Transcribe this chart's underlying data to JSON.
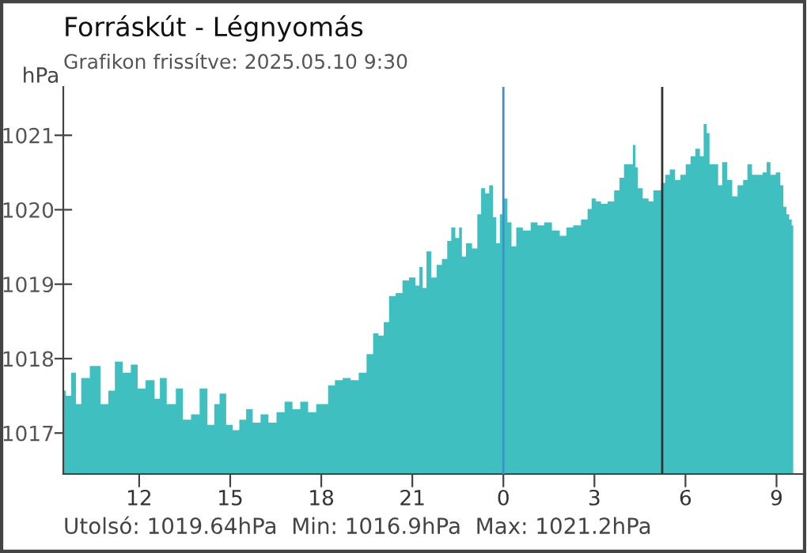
{
  "chart_data": {
    "type": "area",
    "title": "Forráskút - Légnyomás",
    "subtitle": "Grafikon frissítve: 2025.05.10 9:30",
    "ylabel": "hPa",
    "annotations": [
      "Utolsó: 1019.64hPa  Min: 1016.9hPa  Max: 1021.2hPa"
    ],
    "x": [
      "2025-05-09T09:30",
      "2025-05-09T09:40",
      "2025-05-09T09:51",
      "2025-05-09T09:59",
      "2025-05-09T10:12",
      "2025-05-09T10:33",
      "2025-05-09T10:54",
      "2025-05-09T11:04",
      "2025-05-09T11:20",
      "2025-05-09T11:35",
      "2025-05-09T11:52",
      "2025-05-09T12:02",
      "2025-05-09T12:23",
      "2025-05-09T12:38",
      "2025-05-09T12:44",
      "2025-05-09T13:05",
      "2025-05-09T13:20",
      "2025-05-09T13:33",
      "2025-05-09T13:52",
      "2025-05-09T14:07",
      "2025-05-09T14:23",
      "2025-05-09T14:34",
      "2025-05-09T14:44",
      "2025-05-09T15:00",
      "2025-05-09T15:10",
      "2025-05-09T15:26",
      "2025-05-09T15:37",
      "2025-05-09T15:52",
      "2025-05-09T16:08",
      "2025-05-09T16:23",
      "2025-05-09T16:40",
      "2025-05-09T16:55",
      "2025-05-09T17:11",
      "2025-05-09T17:26",
      "2025-05-09T17:42",
      "2025-05-09T17:58",
      "2025-05-09T18:08",
      "2025-05-09T18:19",
      "2025-05-09T18:35",
      "2025-05-09T18:50",
      "2025-05-09T19:06",
      "2025-05-09T19:22",
      "2025-05-09T19:37",
      "2025-05-09T19:48",
      "2025-05-09T19:58",
      "2025-05-09T20:09",
      "2025-05-09T20:19",
      "2025-05-09T20:35",
      "2025-05-09T20:46",
      "2025-05-09T21:01",
      "2025-05-09T21:11",
      "2025-05-09T21:17",
      "2025-05-09T21:24",
      "2025-05-09T21:32",
      "2025-05-09T21:43",
      "2025-05-09T21:53",
      "2025-05-09T22:04",
      "2025-05-09T22:14",
      "2025-05-09T22:20",
      "2025-05-09T22:30",
      "2025-05-09T22:35",
      "2025-05-09T22:41",
      "2025-05-09T22:51",
      "2025-05-09T23:05",
      "2025-05-09T23:12",
      "2025-05-09T23:20",
      "2025-05-09T23:28",
      "2025-05-09T23:36",
      "2025-05-09T23:43",
      "2025-05-09T23:49",
      "2025-05-09T23:57",
      "2025-05-10T00:04",
      "2025-05-10T00:12",
      "2025-05-10T00:20",
      "2025-05-10T00:31",
      "2025-05-10T00:46",
      "2025-05-10T01:02",
      "2025-05-10T01:13",
      "2025-05-10T01:28",
      "2025-05-10T01:44",
      "2025-05-10T01:59",
      "2025-05-10T02:10",
      "2025-05-10T02:26",
      "2025-05-10T02:41",
      "2025-05-10T02:52",
      "2025-05-10T02:57",
      "2025-05-10T03:08",
      "2025-05-10T03:18",
      "2025-05-10T03:34",
      "2025-05-10T03:44",
      "2025-05-10T03:55",
      "2025-05-10T04:02",
      "2025-05-10T04:13",
      "2025-05-10T04:19",
      "2025-05-10T04:23",
      "2025-05-10T04:29",
      "2025-05-10T04:42",
      "2025-05-10T04:52",
      "2025-05-10T05:01",
      "2025-05-10T05:08",
      "2025-05-10T05:16",
      "2025-05-10T05:24",
      "2025-05-10T05:34",
      "2025-05-10T05:45",
      "2025-05-10T05:55",
      "2025-05-10T06:06",
      "2025-05-10T06:14",
      "2025-05-10T06:25",
      "2025-05-10T06:32",
      "2025-05-10T06:40",
      "2025-05-10T06:44",
      "2025-05-10T06:51",
      "2025-05-10T07:01",
      "2025-05-10T07:08",
      "2025-05-10T07:17",
      "2025-05-10T07:28",
      "2025-05-10T07:37",
      "2025-05-10T07:49",
      "2025-05-10T07:59",
      "2025-05-10T08:06",
      "2025-05-10T08:17",
      "2025-05-10T08:27",
      "2025-05-10T08:38",
      "2025-05-10T08:43",
      "2025-05-10T08:53",
      "2025-05-10T09:04",
      "2025-05-10T09:11",
      "2025-05-10T09:16",
      "2025-05-10T09:23",
      "2025-05-10T09:27",
      "2025-05-10T09:33"
    ],
    "series": [
      {
        "color": "#40bfc1",
        "values": [
          1017.57,
          1017.5,
          1017.81,
          1017.39,
          1017.74,
          1017.9,
          1017.39,
          1017.57,
          1017.96,
          1017.81,
          1017.92,
          1017.6,
          1017.71,
          1017.46,
          1017.74,
          1017.39,
          1017.6,
          1017.18,
          1017.25,
          1017.6,
          1017.11,
          1017.39,
          1017.53,
          1017.11,
          1017.04,
          1017.18,
          1017.32,
          1017.14,
          1017.25,
          1017.14,
          1017.28,
          1017.42,
          1017.32,
          1017.42,
          1017.28,
          1017.39,
          1017.39,
          1017.64,
          1017.71,
          1017.74,
          1017.71,
          1017.81,
          1018.06,
          1018.34,
          1018.31,
          1018.49,
          1018.84,
          1018.88,
          1019.05,
          1019.09,
          1018.98,
          1019.23,
          1018.95,
          1019.44,
          1019.09,
          1019.26,
          1019.34,
          1019.58,
          1019.76,
          1019.62,
          1019.76,
          1019.37,
          1019.55,
          1019.48,
          1019.94,
          1020.29,
          1020.22,
          1020.33,
          1019.9,
          1019.55,
          1019.94,
          1020.15,
          1019.83,
          1019.51,
          1019.76,
          1019.72,
          1019.83,
          1019.79,
          1019.83,
          1019.72,
          1019.65,
          1019.76,
          1019.79,
          1019.87,
          1020.01,
          1020.15,
          1020.11,
          1020.08,
          1020.11,
          1020.26,
          1020.43,
          1020.61,
          1020.61,
          1020.87,
          1020.57,
          1020.29,
          1020.15,
          1020.11,
          1020.26,
          1020.26,
          1020.36,
          1020.47,
          1020.54,
          1020.4,
          1020.47,
          1020.61,
          1020.72,
          1020.82,
          1020.72,
          1021.15,
          1021.03,
          1020.61,
          1020.61,
          1020.33,
          1020.64,
          1020.4,
          1020.18,
          1020.33,
          1020.4,
          1020.61,
          1020.47,
          1020.47,
          1020.5,
          1020.64,
          1020.47,
          1020.5,
          1020.33,
          1020.04,
          1019.94,
          1019.87,
          1019.79
        ]
      }
    ],
    "xlim": [
      "2025-05-09T09:30",
      "2025-05-10T09:54"
    ],
    "xticks": [
      {
        "value": "2025-05-09T12:00",
        "label": "12"
      },
      {
        "value": "2025-05-09T15:00",
        "label": "15"
      },
      {
        "value": "2025-05-09T18:00",
        "label": "18"
      },
      {
        "value": "2025-05-09T21:00",
        "label": "21"
      },
      {
        "value": "2025-05-10T00:00",
        "label": "0"
      },
      {
        "value": "2025-05-10T03:00",
        "label": "3"
      },
      {
        "value": "2025-05-10T06:00",
        "label": "6"
      },
      {
        "value": "2025-05-10T09:00",
        "label": "9"
      }
    ],
    "ylim": [
      1016.45,
      1021.65
    ],
    "yticks": [
      1017,
      1018,
      1019,
      1020,
      1021
    ],
    "ref_lines": [
      {
        "axis": "x",
        "value": "2025-05-10T00:00",
        "color": "#3f8fd0"
      },
      {
        "axis": "x",
        "value": "2025-05-10T05:14",
        "color": "#333333"
      }
    ],
    "grid": false,
    "legend": false
  }
}
